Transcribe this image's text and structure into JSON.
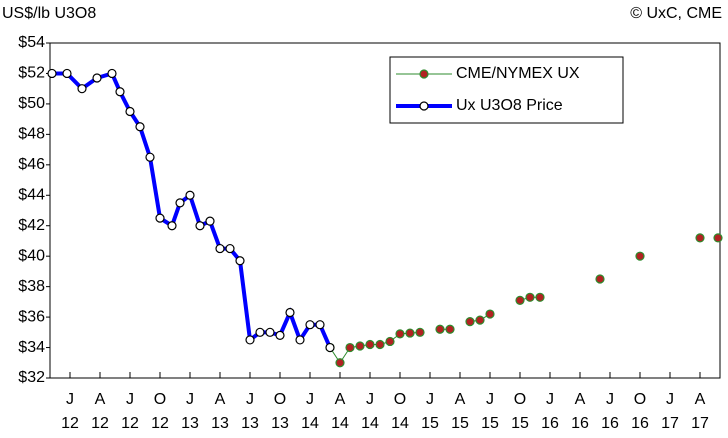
{
  "chart_data": {
    "type": "line",
    "y_label": "US$/lb U3O8",
    "source": "© UxC, CME",
    "xlim": [
      -2,
      65
    ],
    "xticks": [
      {
        "value": 0,
        "label": "J\n12"
      },
      {
        "value": 3,
        "label": "A\n12"
      },
      {
        "value": 6,
        "label": "J\n12"
      },
      {
        "value": 9,
        "label": "O\n12"
      },
      {
        "value": 12,
        "label": "J\n13"
      },
      {
        "value": 15,
        "label": "A\n13"
      },
      {
        "value": 18,
        "label": "J\n13"
      },
      {
        "value": 21,
        "label": "O\n13"
      },
      {
        "value": 24,
        "label": "J\n14"
      },
      {
        "value": 27,
        "label": "A\n14"
      },
      {
        "value": 30,
        "label": "J\n14"
      },
      {
        "value": 33,
        "label": "O\n14"
      },
      {
        "value": 36,
        "label": "J\n15"
      },
      {
        "value": 39,
        "label": "A\n15"
      },
      {
        "value": 42,
        "label": "J\n15"
      },
      {
        "value": 45,
        "label": "O\n15"
      },
      {
        "value": 48,
        "label": "J\n16"
      },
      {
        "value": 51,
        "label": "A\n16"
      },
      {
        "value": 54,
        "label": "J\n16"
      },
      {
        "value": 57,
        "label": "O\n16"
      },
      {
        "value": 60,
        "label": "J\n17"
      },
      {
        "value": 63,
        "label": "A\n17"
      }
    ],
    "ylim": [
      32,
      54
    ],
    "yticks": [
      {
        "value": 32,
        "label": "$32"
      },
      {
        "value": 34,
        "label": "$34"
      },
      {
        "value": 36,
        "label": "$36"
      },
      {
        "value": 38,
        "label": "$38"
      },
      {
        "value": 40,
        "label": "$40"
      },
      {
        "value": 42,
        "label": "$42"
      },
      {
        "value": 44,
        "label": "$44"
      },
      {
        "value": 46,
        "label": "$46"
      },
      {
        "value": 48,
        "label": "$48"
      },
      {
        "value": 50,
        "label": "$50"
      },
      {
        "value": 52,
        "label": "$52"
      },
      {
        "value": 54,
        "label": "$54"
      }
    ],
    "legend": "upper right",
    "series": [
      {
        "name": "CME/NYMEX UX",
        "color": "#2e8b2e",
        "marker_fill": "#b22222",
        "x": [
          26,
          27,
          28,
          29,
          30,
          31,
          32,
          33,
          34,
          35,
          37,
          38,
          40,
          41,
          42,
          45,
          46,
          47,
          53,
          57,
          63,
          64.8
        ],
        "values": [
          34,
          33,
          34,
          34.1,
          34.2,
          34.2,
          34.4,
          34.9,
          34.95,
          35,
          35.2,
          35.2,
          35.7,
          35.8,
          36.2,
          37.1,
          37.3,
          37.3,
          38.5,
          40,
          41.2,
          41.2
        ]
      },
      {
        "name": "Ux U3O8 Price",
        "color": "#0000ff",
        "marker_fill": "#ffffff",
        "x": [
          -1.8,
          -0.3,
          1.2,
          2.7,
          4.2,
          5,
          6,
          7,
          8,
          9,
          10.2,
          11,
          12,
          13,
          14,
          15,
          16,
          17,
          18,
          19,
          20,
          21,
          22,
          23,
          24,
          25,
          26
        ],
        "values": [
          52,
          52,
          51,
          51.7,
          52,
          50.8,
          49.5,
          48.5,
          46.5,
          42.5,
          42,
          43.5,
          44,
          42,
          42.3,
          40.5,
          40.5,
          39.7,
          34.5,
          35,
          35,
          34.8,
          36.3,
          34.5,
          35.5,
          35.5,
          34
        ]
      }
    ]
  }
}
